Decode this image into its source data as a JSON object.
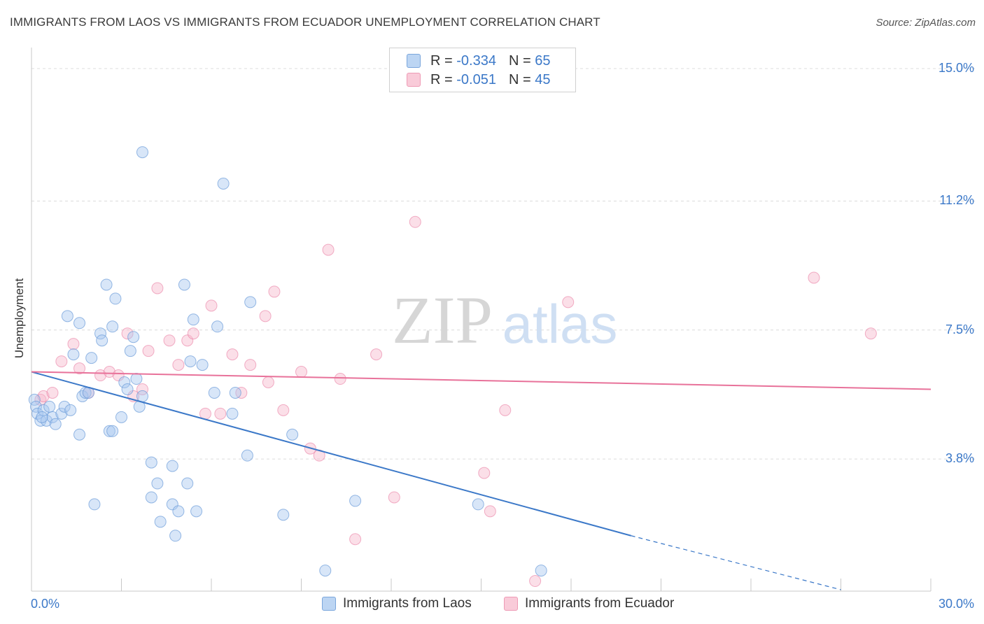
{
  "title": "IMMIGRANTS FROM LAOS VS IMMIGRANTS FROM ECUADOR UNEMPLOYMENT CORRELATION CHART",
  "source": "Source: ZipAtlas.com",
  "watermark": {
    "zip": "ZIP",
    "atlas": "atlas"
  },
  "legend": {
    "r_label": "R =",
    "n_label": "N =",
    "rows": [
      {
        "r": "-0.334",
        "n": "65",
        "color": "#a8c8f0"
      },
      {
        "r": "-0.051",
        "n": "45",
        "color": "#f6b8cb"
      }
    ]
  },
  "colors": {
    "blue": "#3b78c8",
    "blue_fill": "#a8c8f0",
    "pink": "#e8729a",
    "pink_fill": "#f6b8cb",
    "grid": "#dcdcdc"
  },
  "chart_data": {
    "type": "scatter",
    "title": "IMMIGRANTS FROM LAOS VS IMMIGRANTS FROM ECUADOR UNEMPLOYMENT CORRELATION CHART",
    "xlabel": "",
    "ylabel": "Unemployment",
    "xlim": [
      0,
      30
    ],
    "ylim": [
      0,
      15.5
    ],
    "x_tick_labels": [
      "0.0%",
      "30.0%"
    ],
    "y_ticks": [
      3.8,
      7.5,
      11.2,
      15.0
    ],
    "y_tick_labels": [
      "3.8%",
      "7.5%",
      "11.2%",
      "15.0%"
    ],
    "grid": true,
    "legend_position": "top-center",
    "series": [
      {
        "name": "Immigrants from Laos",
        "color": "#3b78c8",
        "trend": {
          "x": [
            0,
            20
          ],
          "y": [
            6.3,
            1.6
          ],
          "dashed_to": [
            27,
            0.05
          ]
        },
        "points": [
          [
            0.1,
            5.5
          ],
          [
            0.15,
            5.3
          ],
          [
            0.2,
            5.1
          ],
          [
            0.3,
            4.9
          ],
          [
            0.4,
            5.2
          ],
          [
            0.5,
            4.9
          ],
          [
            0.6,
            5.3
          ],
          [
            0.7,
            5.0
          ],
          [
            0.8,
            4.8
          ],
          [
            1.0,
            5.1
          ],
          [
            1.1,
            5.3
          ],
          [
            1.3,
            5.2
          ],
          [
            1.2,
            7.9
          ],
          [
            1.4,
            6.8
          ],
          [
            1.6,
            7.7
          ],
          [
            1.7,
            5.6
          ],
          [
            1.8,
            5.7
          ],
          [
            1.6,
            4.5
          ],
          [
            2.0,
            6.7
          ],
          [
            2.3,
            7.4
          ],
          [
            2.35,
            7.2
          ],
          [
            2.5,
            8.8
          ],
          [
            2.7,
            7.6
          ],
          [
            2.8,
            8.4
          ],
          [
            2.6,
            4.6
          ],
          [
            2.7,
            4.6
          ],
          [
            3.0,
            5.0
          ],
          [
            3.1,
            6.0
          ],
          [
            3.2,
            5.8
          ],
          [
            3.3,
            6.9
          ],
          [
            3.4,
            7.3
          ],
          [
            3.5,
            6.1
          ],
          [
            3.6,
            5.3
          ],
          [
            3.7,
            5.6
          ],
          [
            3.7,
            12.6
          ],
          [
            4.0,
            2.7
          ],
          [
            4.0,
            3.7
          ],
          [
            4.2,
            3.1
          ],
          [
            4.3,
            2.0
          ],
          [
            4.7,
            3.6
          ],
          [
            4.7,
            2.5
          ],
          [
            4.8,
            1.6
          ],
          [
            4.9,
            2.3
          ],
          [
            5.1,
            8.8
          ],
          [
            5.2,
            3.1
          ],
          [
            5.3,
            6.6
          ],
          [
            5.4,
            7.8
          ],
          [
            5.5,
            2.3
          ],
          [
            5.7,
            6.5
          ],
          [
            6.1,
            5.7
          ],
          [
            6.2,
            7.6
          ],
          [
            6.4,
            11.7
          ],
          [
            6.7,
            5.1
          ],
          [
            6.8,
            5.7
          ],
          [
            7.2,
            3.9
          ],
          [
            7.3,
            8.3
          ],
          [
            8.4,
            2.2
          ],
          [
            8.7,
            4.5
          ],
          [
            9.8,
            0.6
          ],
          [
            10.8,
            2.6
          ],
          [
            14.9,
            2.5
          ],
          [
            17.0,
            0.6
          ],
          [
            2.1,
            2.5
          ],
          [
            1.9,
            5.7
          ],
          [
            0.35,
            5.0
          ]
        ]
      },
      {
        "name": "Immigrants from Ecuador",
        "color": "#e8729a",
        "trend": {
          "x": [
            0,
            30
          ],
          "y": [
            6.3,
            5.8
          ]
        },
        "points": [
          [
            0.3,
            5.5
          ],
          [
            0.4,
            5.6
          ],
          [
            0.7,
            5.7
          ],
          [
            1.0,
            6.6
          ],
          [
            1.4,
            7.1
          ],
          [
            1.6,
            6.4
          ],
          [
            1.9,
            5.7
          ],
          [
            2.3,
            6.2
          ],
          [
            2.6,
            6.3
          ],
          [
            2.9,
            6.2
          ],
          [
            3.2,
            7.4
          ],
          [
            3.4,
            5.6
          ],
          [
            3.7,
            5.8
          ],
          [
            3.9,
            6.9
          ],
          [
            4.2,
            8.7
          ],
          [
            4.6,
            7.2
          ],
          [
            4.9,
            6.5
          ],
          [
            5.2,
            7.2
          ],
          [
            5.4,
            7.4
          ],
          [
            5.8,
            5.1
          ],
          [
            6.0,
            8.2
          ],
          [
            6.3,
            5.1
          ],
          [
            6.7,
            6.8
          ],
          [
            7.0,
            5.7
          ],
          [
            7.3,
            6.5
          ],
          [
            7.8,
            7.9
          ],
          [
            7.9,
            6.0
          ],
          [
            8.1,
            8.6
          ],
          [
            8.4,
            5.2
          ],
          [
            9.0,
            6.3
          ],
          [
            9.3,
            4.1
          ],
          [
            9.6,
            3.9
          ],
          [
            9.9,
            9.8
          ],
          [
            10.3,
            6.1
          ],
          [
            10.8,
            1.5
          ],
          [
            11.5,
            6.8
          ],
          [
            12.1,
            2.7
          ],
          [
            12.8,
            10.6
          ],
          [
            15.1,
            3.4
          ],
          [
            15.3,
            2.3
          ],
          [
            15.8,
            5.2
          ],
          [
            16.8,
            0.3
          ],
          [
            17.9,
            8.3
          ],
          [
            26.1,
            9.0
          ],
          [
            28.0,
            7.4
          ]
        ]
      }
    ]
  },
  "bottom_legend": [
    "Immigrants from Laos",
    "Immigrants from Ecuador"
  ]
}
